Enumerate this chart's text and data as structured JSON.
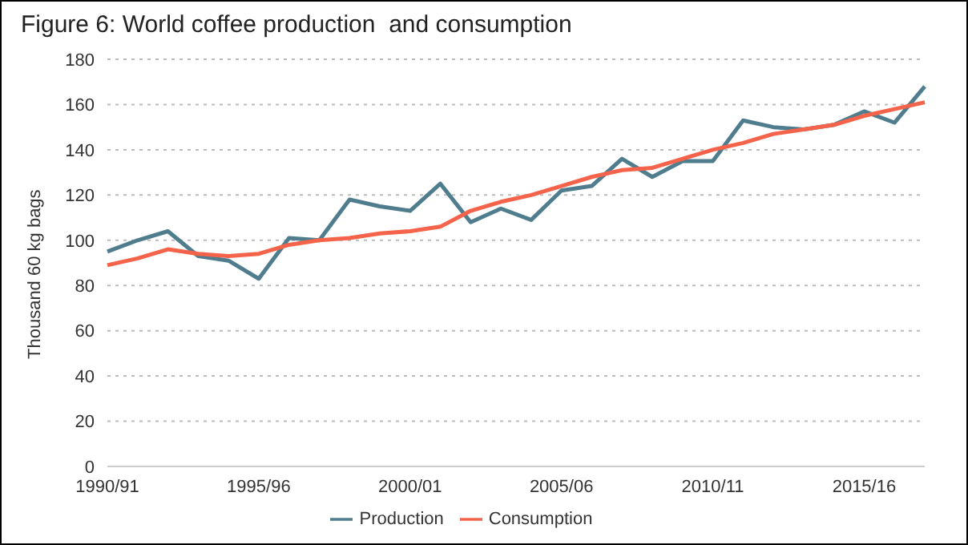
{
  "chart_data": {
    "type": "line",
    "title": "Figure 6: World coffee production  and consumption",
    "ylabel": "Thousand 60 kg bags",
    "categories": [
      "1990/91",
      null,
      null,
      null,
      null,
      "1995/96",
      null,
      null,
      null,
      null,
      "2000/01",
      null,
      null,
      null,
      null,
      "2005/06",
      null,
      null,
      null,
      null,
      "2010/11",
      null,
      null,
      null,
      null,
      "2015/16",
      null,
      null
    ],
    "series": [
      {
        "name": "Production",
        "color": "#4f7d8e",
        "values": [
          95,
          100,
          104,
          93,
          91,
          83,
          101,
          100,
          118,
          115,
          113,
          125,
          108,
          114,
          109,
          122,
          124,
          136,
          128,
          135,
          135,
          153,
          150,
          149,
          151,
          157,
          152,
          168
        ]
      },
      {
        "name": "Consumption",
        "color": "#f4634a",
        "values": [
          89,
          92,
          96,
          94,
          93,
          94,
          98,
          100,
          101,
          103,
          104,
          106,
          113,
          117,
          120,
          124,
          128,
          131,
          132,
          136,
          140,
          143,
          147,
          149,
          151,
          155,
          158,
          161
        ]
      }
    ],
    "ylim": [
      0,
      180
    ],
    "yticks": [
      0,
      20,
      40,
      60,
      80,
      100,
      120,
      140,
      160,
      180
    ],
    "grid": "y",
    "legend": "bottom",
    "marker": "none",
    "line_style": "solid"
  }
}
